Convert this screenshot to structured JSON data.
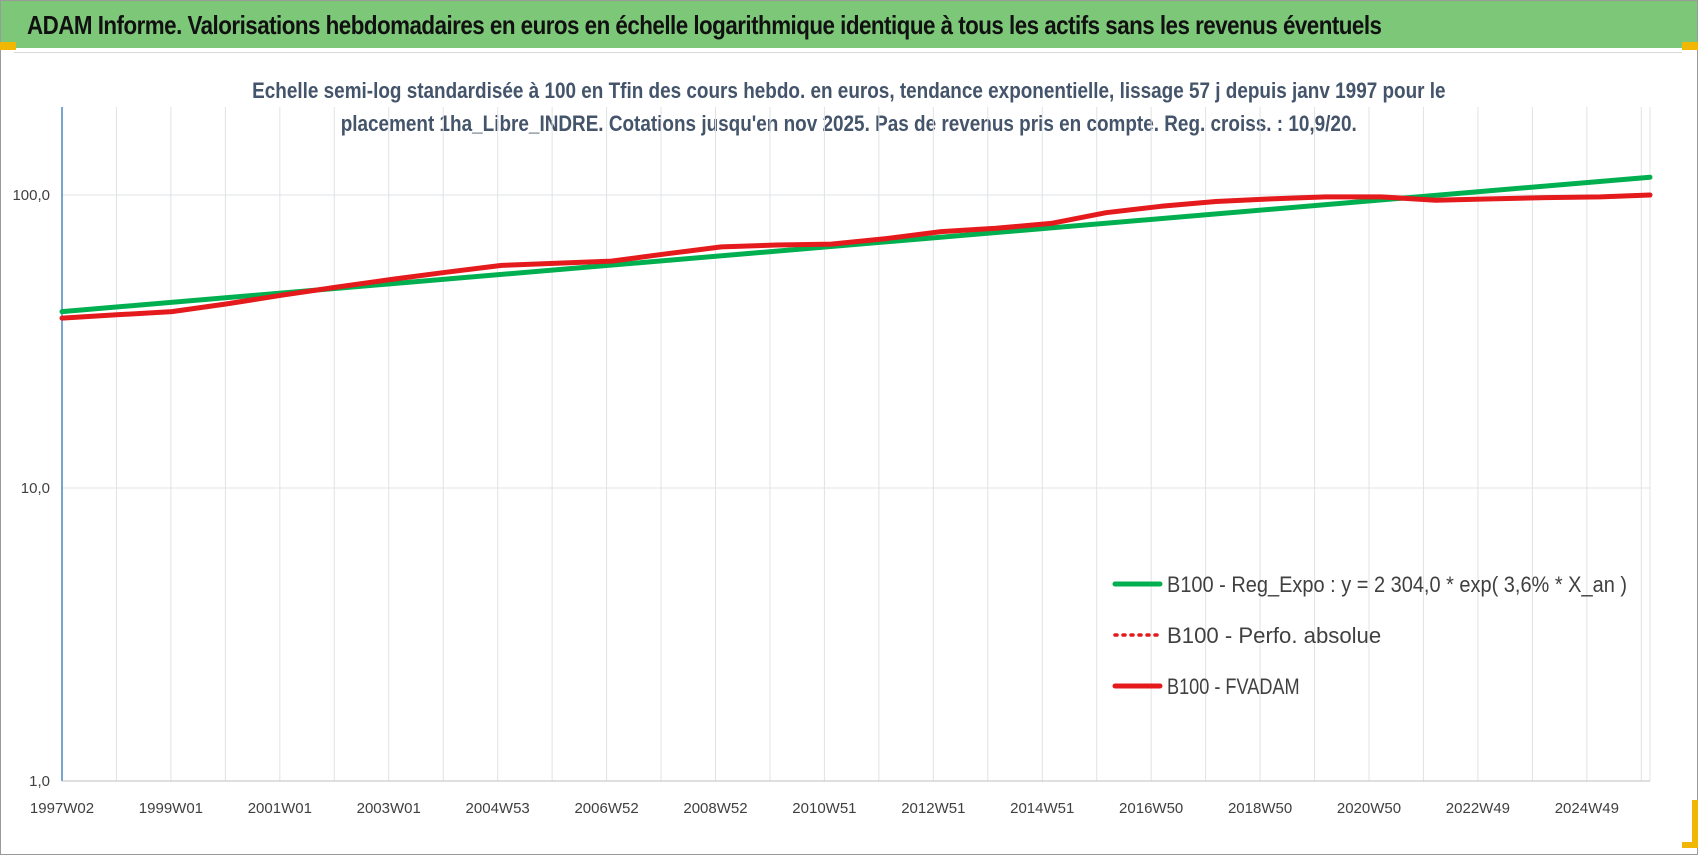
{
  "header": {
    "title": "ADAM Informe. Valorisations hebdomadaires en euros en échelle logarithmique identique à tous les actifs sans les revenus éventuels"
  },
  "chart_data": {
    "type": "line",
    "title_line1": "Echelle semi-log standardisée à 100 en Tfin des cours hebdo. en euros, tendance exponentielle, lissage 57 j depuis janv 1997 pour le",
    "title_line2": "placement 1ha_Libre_INDRE. Cotations jusqu'en nov 2025. Pas de revenus pris en compte. Reg. croiss. : 10,9/20.",
    "y_scale": "log",
    "ylim": [
      1,
      100
    ],
    "y_ticks": [
      "1,0",
      "10,0",
      "100,0"
    ],
    "x_tick_labels": [
      "1997W02",
      "1999W01",
      "2001W01",
      "2003W01",
      "2004W53",
      "2006W52",
      "2008W52",
      "2010W51",
      "2012W51",
      "2014W51",
      "2016W50",
      "2018W50",
      "2020W50",
      "2022W49",
      "2024W49"
    ],
    "x_range_years": [
      1997.0,
      2025.9
    ],
    "grid": "vertical lines at each label and midpoint",
    "legend_position": "bottom-right",
    "series": [
      {
        "name": "B100 - Reg_Expo : y = 2 304,0 * exp( 3,6% *  X_an )",
        "color": "#00b050",
        "style": "solid",
        "x": [
          1997.0,
          2025.9
        ],
        "values": [
          40.0,
          115.0
        ]
      },
      {
        "name": "B100 - Perfo. absolue",
        "color": "#e41a1c",
        "style": "dotted",
        "x": [
          1997.0,
          1998.0,
          1999.0,
          2000.0,
          2001.0,
          2002.0,
          2003.0,
          2004.0,
          2005.0,
          2006.0,
          2007.0,
          2008.0,
          2009.0,
          2010.0,
          2011.0,
          2012.0,
          2013.0,
          2014.0,
          2015.0,
          2016.0,
          2017.0,
          2018.0,
          2019.0,
          2020.0,
          2021.0,
          2022.0,
          2023.0,
          2024.0,
          2025.0,
          2025.9
        ],
        "values": [
          38.0,
          39.0,
          40.0,
          42.5,
          45.5,
          48.5,
          51.5,
          54.5,
          57.5,
          58.5,
          59.5,
          63.0,
          66.5,
          67.5,
          68.0,
          71.0,
          75.0,
          77.0,
          80.0,
          87.0,
          91.5,
          95.0,
          97.0,
          98.5,
          98.5,
          96.0,
          97.0,
          98.0,
          98.5,
          100.0
        ]
      },
      {
        "name": "B100 - FVADAM",
        "color": "#e41a1c",
        "style": "solid",
        "x": [
          1997.0,
          1998.0,
          1999.0,
          2000.0,
          2001.0,
          2002.0,
          2003.0,
          2004.0,
          2005.0,
          2006.0,
          2007.0,
          2008.0,
          2009.0,
          2010.0,
          2011.0,
          2012.0,
          2013.0,
          2014.0,
          2015.0,
          2016.0,
          2017.0,
          2018.0,
          2019.0,
          2020.0,
          2021.0,
          2022.0,
          2023.0,
          2024.0,
          2025.0,
          2025.9
        ],
        "values": [
          38.0,
          39.0,
          40.0,
          42.5,
          45.5,
          48.5,
          51.5,
          54.5,
          57.5,
          58.5,
          59.5,
          63.0,
          66.5,
          67.5,
          68.0,
          71.0,
          75.0,
          77.0,
          80.0,
          87.0,
          91.5,
          95.0,
          97.0,
          98.5,
          98.5,
          96.0,
          97.0,
          98.0,
          98.5,
          100.0
        ]
      }
    ]
  }
}
